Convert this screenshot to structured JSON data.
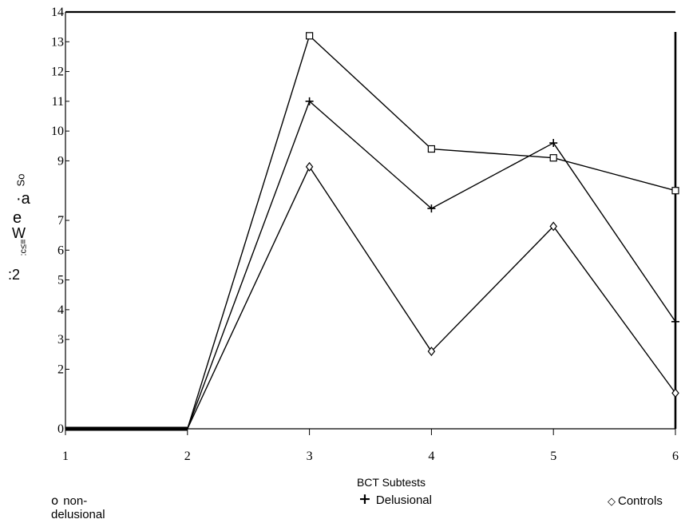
{
  "chart_data": {
    "type": "line",
    "title": "",
    "xlabel": "BCT Subtests",
    "ylabel_fragments": [
      "So",
      "·a",
      "e",
      "W",
      ":c≤≡",
      ":2"
    ],
    "x": [
      1,
      2,
      3,
      4,
      5,
      6
    ],
    "x_tick_labels": [
      "1",
      "2",
      "3",
      "4",
      "5",
      "6"
    ],
    "xlim": [
      1,
      6
    ],
    "ylim": [
      0,
      14
    ],
    "y_ticks": [
      0,
      2,
      3,
      4,
      5,
      6,
      7,
      9,
      10,
      11,
      12,
      13,
      14
    ],
    "y_tick_labels": [
      "0",
      "2",
      "3",
      "4",
      "5",
      "6",
      "7",
      "9",
      "10",
      "11",
      "12",
      "13",
      "14"
    ],
    "series": [
      {
        "name": "non-delusional",
        "legend_symbol": "o",
        "marker": "square",
        "values": [
          0,
          0,
          13.2,
          9.4,
          9.1,
          8.0
        ]
      },
      {
        "name": "Delusional",
        "legend_symbol": "+",
        "marker": "plus",
        "values": [
          0,
          0,
          11.0,
          7.4,
          9.6,
          3.6
        ]
      },
      {
        "name": "Controls",
        "legend_symbol": "◇",
        "marker": "diamond",
        "values": [
          0,
          0,
          8.8,
          2.6,
          6.8,
          1.2
        ]
      }
    ],
    "grid": false,
    "legend_position": "bottom"
  }
}
